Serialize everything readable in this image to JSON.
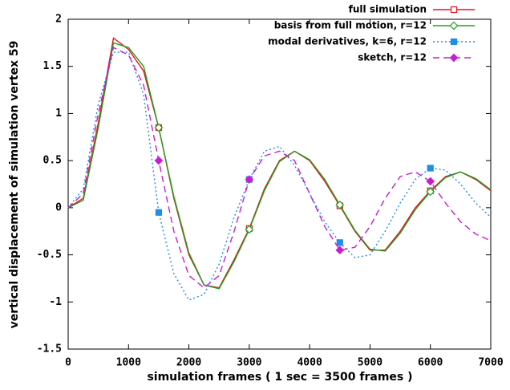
{
  "chart_data": {
    "type": "line",
    "x_label": "simulation frames ( 1 sec = 3500 frames )",
    "y_label": "vertical displacement of simulation vertex 59",
    "x": [
      0,
      250,
      500,
      750,
      1000,
      1250,
      1500,
      1750,
      2000,
      2250,
      2500,
      2750,
      3000,
      3250,
      3500,
      3750,
      4000,
      4250,
      4500,
      4750,
      5000,
      5250,
      5500,
      5750,
      6000,
      6250,
      6500,
      6750,
      7000
    ],
    "xlim": [
      0,
      7000
    ],
    "xticks": [
      0,
      1000,
      2000,
      3000,
      4000,
      5000,
      6000,
      7000
    ],
    "ylim": [
      -1.5,
      2
    ],
    "yticks": [
      -1.5,
      -1,
      -0.5,
      0,
      0.5,
      1,
      1.5,
      2
    ],
    "marker_step": 1500,
    "legend": "top-right",
    "series": [
      {
        "name": "full simulation",
        "color": "#e8141e",
        "style": "solid",
        "marker": "square-open",
        "values": [
          0,
          0.1,
          0.9,
          1.8,
          1.68,
          1.45,
          0.85,
          0.1,
          -0.5,
          -0.82,
          -0.85,
          -0.55,
          -0.22,
          0.2,
          0.5,
          0.6,
          0.5,
          0.28,
          0.02,
          -0.25,
          -0.45,
          -0.45,
          -0.25,
          0.0,
          0.18,
          0.33,
          0.38,
          0.3,
          0.18
        ]
      },
      {
        "name": "basis from full motion, r=12",
        "color": "#1ea01e",
        "style": "solid",
        "marker": "diamond-open",
        "values": [
          0,
          0.08,
          0.85,
          1.75,
          1.7,
          1.5,
          0.85,
          0.12,
          -0.48,
          -0.82,
          -0.86,
          -0.57,
          -0.23,
          0.18,
          0.49,
          0.6,
          0.51,
          0.3,
          0.03,
          -0.24,
          -0.44,
          -0.46,
          -0.27,
          -0.02,
          0.17,
          0.32,
          0.38,
          0.31,
          0.19
        ]
      },
      {
        "name": "modal derivatives, k=6, r=12",
        "color": "#1e8ee8",
        "style": "dotted",
        "marker": "square",
        "values": [
          0,
          0.2,
          1.1,
          1.65,
          1.65,
          1.2,
          -0.05,
          -0.7,
          -0.98,
          -0.92,
          -0.6,
          -0.1,
          0.3,
          0.6,
          0.65,
          0.45,
          0.15,
          -0.15,
          -0.37,
          -0.53,
          -0.5,
          -0.25,
          0.05,
          0.3,
          0.42,
          0.4,
          0.25,
          0.05,
          -0.1
        ]
      },
      {
        "name": "sketch, r=12",
        "color": "#c81ed2",
        "style": "dashed",
        "marker": "diamond",
        "values": [
          0,
          0.15,
          1.0,
          1.7,
          1.62,
          1.3,
          0.5,
          -0.25,
          -0.72,
          -0.85,
          -0.72,
          -0.25,
          0.3,
          0.55,
          0.6,
          0.5,
          0.15,
          -0.2,
          -0.45,
          -0.42,
          -0.2,
          0.1,
          0.33,
          0.38,
          0.28,
          0.05,
          -0.15,
          -0.28,
          -0.35
        ]
      }
    ]
  }
}
